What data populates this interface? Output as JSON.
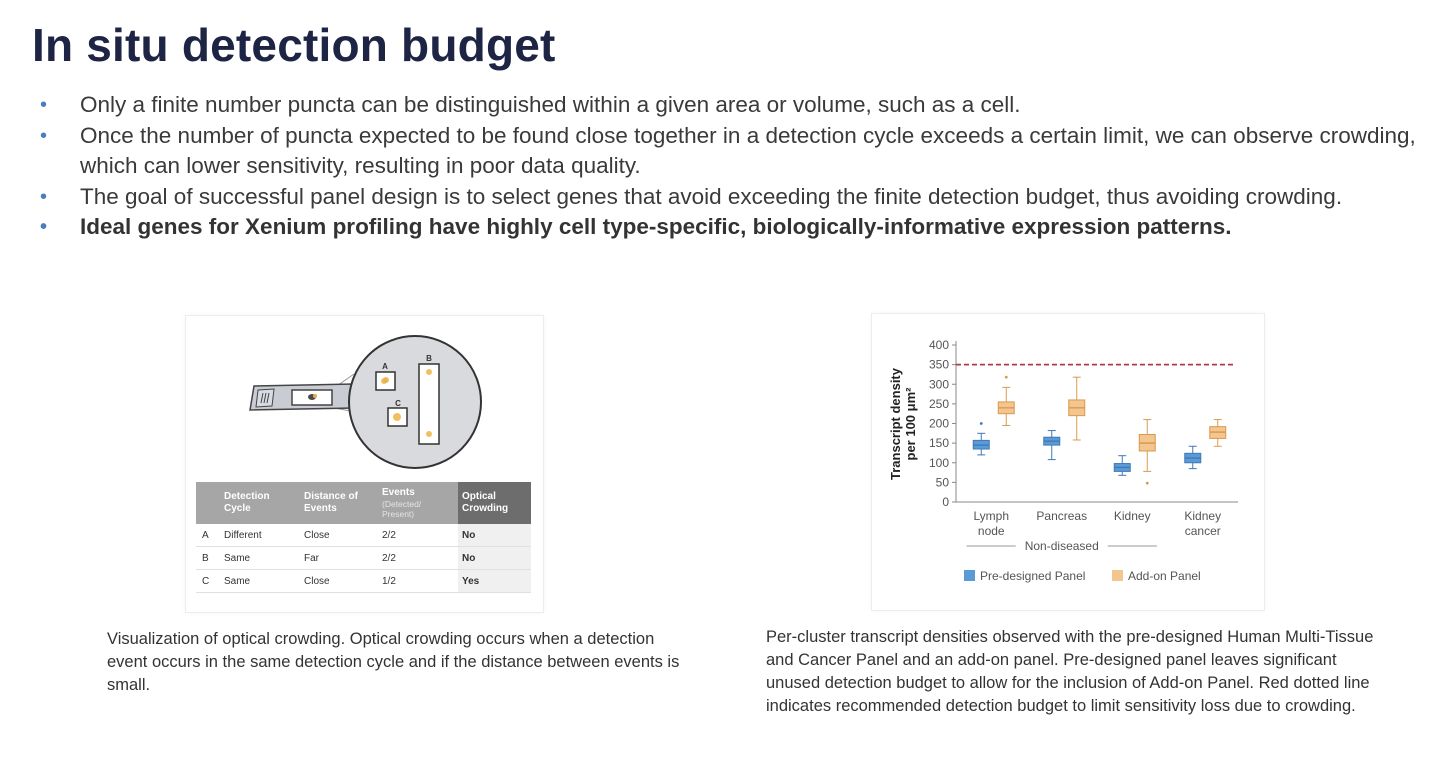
{
  "slide": {
    "title": "In situ detection budget",
    "bullets": [
      "Only a finite number puncta can be distinguished within a given area or volume, such as a cell.",
      "Once the number of puncta expected to be found close together in a detection cycle exceeds a certain limit, we can observe crowding, which can lower sensitivity, resulting in poor data quality.",
      "The goal of successful panel design is to select genes that avoid exceeding the finite detection budget, thus avoiding crowding.",
      "Ideal genes for Xenium profiling have highly cell type-specific, biologically-informative expression patterns."
    ]
  },
  "left_figure": {
    "labels": {
      "a": "A",
      "b": "B",
      "c": "C"
    },
    "table": {
      "headers": [
        "Detection Cycle",
        "Distance of Events",
        "Events",
        "(Detected/ Present)",
        "Optical Crowding"
      ],
      "rows": [
        {
          "id": "A",
          "cycle": "Different",
          "distance": "Close",
          "events": "2/2",
          "crowding": "No"
        },
        {
          "id": "B",
          "cycle": "Same",
          "distance": "Far",
          "events": "2/2",
          "crowding": "No"
        },
        {
          "id": "C",
          "cycle": "Same",
          "distance": "Close",
          "events": "1/2",
          "crowding": "Yes"
        }
      ]
    },
    "caption": "Visualization of optical crowding. Optical crowding occurs when a detection event occurs in the same detection cycle and if the distance between events is small."
  },
  "chart_data": {
    "type": "box",
    "ylabel": [
      "Transcript density",
      "per 100 μm²"
    ],
    "ylim": [
      0,
      400
    ],
    "yticks": [
      0,
      50,
      100,
      150,
      200,
      250,
      300,
      350,
      400
    ],
    "categories": [
      {
        "label": [
          "Lymph",
          "node"
        ]
      },
      {
        "label": [
          "Pancreas"
        ]
      },
      {
        "label": [
          "Kidney"
        ]
      },
      {
        "label": [
          "Kidney",
          "cancer"
        ]
      }
    ],
    "group_label": "Non-diseased",
    "reference_line": {
      "y": 350,
      "color": "#b23a48"
    },
    "series": [
      {
        "name": "Pre-designed Panel",
        "color": "#5b9bd5",
        "boxes": [
          {
            "whisker_low": 120,
            "q1": 135,
            "median": 145,
            "q3": 157,
            "whisker_high": 175,
            "outliers": [
              200
            ]
          },
          {
            "whisker_low": 108,
            "q1": 145,
            "median": 155,
            "q3": 165,
            "whisker_high": 182,
            "outliers": []
          },
          {
            "whisker_low": 68,
            "q1": 78,
            "median": 88,
            "q3": 98,
            "whisker_high": 118,
            "outliers": []
          },
          {
            "whisker_low": 85,
            "q1": 100,
            "median": 112,
            "q3": 124,
            "whisker_high": 142,
            "outliers": []
          }
        ]
      },
      {
        "name": "Add-on Panel",
        "color": "#f3c58f",
        "boxes": [
          {
            "whisker_low": 195,
            "q1": 225,
            "median": 240,
            "q3": 255,
            "whisker_high": 292,
            "outliers": [
              318
            ]
          },
          {
            "whisker_low": 158,
            "q1": 220,
            "median": 240,
            "q3": 260,
            "whisker_high": 318,
            "outliers": []
          },
          {
            "whisker_low": 78,
            "q1": 130,
            "median": 150,
            "q3": 172,
            "whisker_high": 210,
            "outliers": [
              48
            ]
          },
          {
            "whisker_low": 142,
            "q1": 162,
            "median": 178,
            "q3": 192,
            "whisker_high": 210,
            "outliers": []
          }
        ]
      }
    ],
    "legend": [
      "Pre-designed Panel",
      "Add-on Panel"
    ],
    "caption": "Per-cluster transcript densities observed with the pre-designed Human Multi-Tissue and Cancer Panel and an add-on panel. Pre-designed panel leaves significant unused detection budget to allow for the inclusion of Add-on Panel. Red dotted line indicates recommended detection budget to limit sensitivity loss due to crowding."
  }
}
